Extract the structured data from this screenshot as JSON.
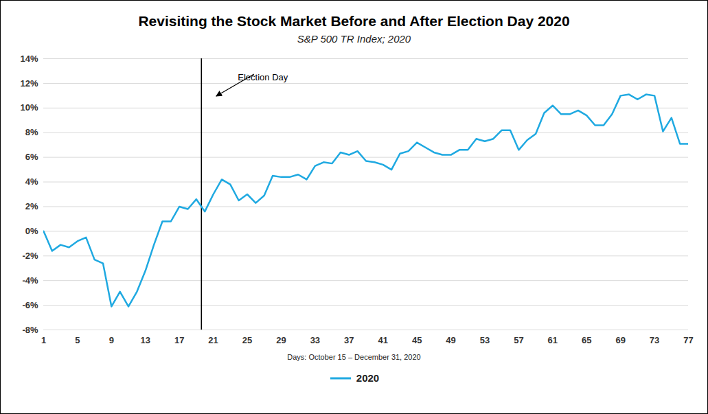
{
  "chart_data": {
    "type": "line",
    "title": "Revisiting the Stock Market Before and After Election Day 2020",
    "subtitle": "S&P 500 TR Index; 2020",
    "x_label": "Days: October 15 – December 31, 2020",
    "x": [
      1,
      2,
      3,
      4,
      5,
      6,
      7,
      8,
      9,
      10,
      11,
      12,
      13,
      14,
      15,
      16,
      17,
      18,
      19,
      20,
      21,
      22,
      23,
      24,
      25,
      26,
      27,
      28,
      29,
      30,
      31,
      32,
      33,
      34,
      35,
      36,
      37,
      38,
      39,
      40,
      41,
      42,
      43,
      44,
      45,
      46,
      47,
      48,
      49,
      50,
      51,
      52,
      53,
      54,
      55,
      56,
      57,
      58,
      59,
      60,
      61,
      62,
      63,
      64,
      65,
      66,
      67,
      68,
      69,
      70,
      71,
      72,
      73,
      74,
      75,
      76,
      77
    ],
    "xlim": [
      1,
      77
    ],
    "xticks": [
      1,
      5,
      9,
      13,
      17,
      21,
      25,
      29,
      33,
      37,
      41,
      45,
      49,
      53,
      57,
      61,
      65,
      69,
      73,
      77
    ],
    "ylim": [
      -8,
      14
    ],
    "yticks": [
      {
        "value": -8,
        "label": "-8%"
      },
      {
        "value": -6,
        "label": "-6%"
      },
      {
        "value": -4,
        "label": "-4%"
      },
      {
        "value": -2,
        "label": "-2%"
      },
      {
        "value": 0,
        "label": "0%"
      },
      {
        "value": 2,
        "label": "2%"
      },
      {
        "value": 4,
        "label": "4%"
      },
      {
        "value": 6,
        "label": "6%"
      },
      {
        "value": 8,
        "label": "8%"
      },
      {
        "value": 10,
        "label": "10%"
      },
      {
        "value": 12,
        "label": "12%"
      },
      {
        "value": 14,
        "label": "14%"
      }
    ],
    "grid": true,
    "legend": "bottom",
    "series": [
      {
        "name": "2020",
        "color": "#1fa9e1",
        "values": [
          0,
          -1.6,
          -1.1,
          -1.3,
          -0.8,
          -0.5,
          -2.3,
          -2.6,
          -6.1,
          -4.9,
          -6.1,
          -4.9,
          -3.2,
          -1.1,
          0.8,
          0.8,
          2.0,
          1.8,
          2.6,
          1.6,
          3.0,
          4.2,
          3.8,
          2.5,
          3.0,
          2.3,
          2.9,
          4.5,
          4.4,
          4.4,
          4.6,
          4.2,
          5.3,
          5.6,
          5.5,
          6.4,
          6.2,
          6.5,
          5.7,
          5.6,
          5.4,
          5.0,
          6.3,
          6.5,
          7.2,
          6.8,
          6.4,
          6.2,
          6.2,
          6.6,
          6.6,
          7.5,
          7.3,
          7.5,
          8.2,
          8.2,
          6.6,
          7.4,
          7.9,
          9.6,
          10.2,
          9.5,
          9.5,
          9.8,
          9.4,
          8.6,
          8.6,
          9.5,
          11.0,
          11.1,
          10.7,
          11.1,
          11.0,
          8.1,
          9.2,
          7.1,
          7.1
        ]
      }
    ],
    "annotations": [
      {
        "text": "Election Day",
        "x": 19.6
      }
    ]
  }
}
